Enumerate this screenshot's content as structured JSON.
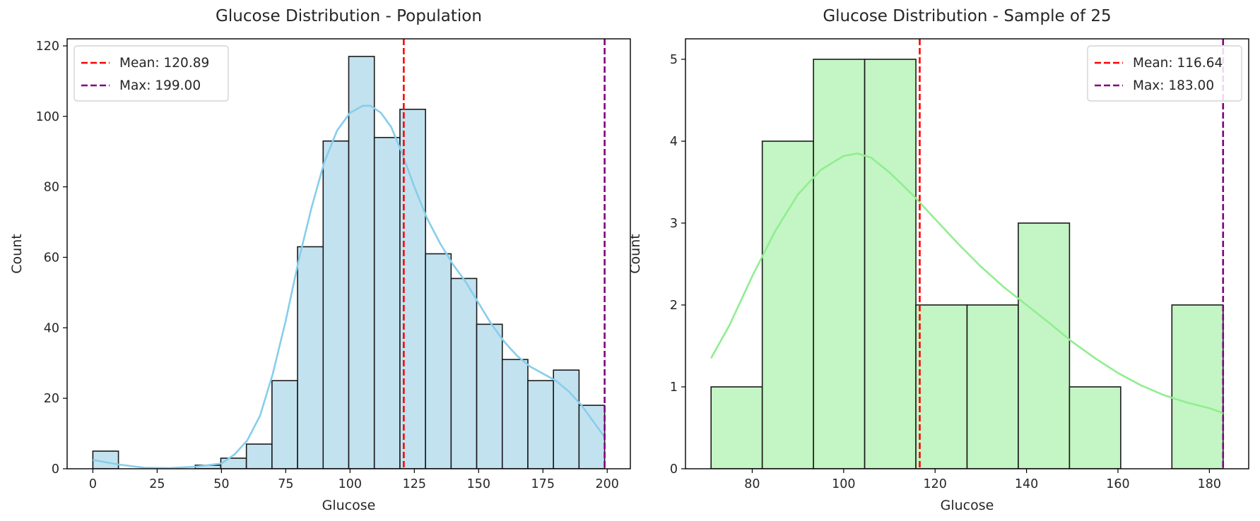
{
  "chart_data": [
    {
      "type": "bar",
      "title": "Glucose Distribution - Population",
      "xlabel": "Glucose",
      "ylabel": "Count",
      "xlim": [
        -10,
        209
      ],
      "ylim": [
        0,
        122
      ],
      "xticks": [
        0,
        25,
        50,
        75,
        100,
        125,
        150,
        175,
        200
      ],
      "yticks": [
        0,
        20,
        40,
        60,
        80,
        100,
        120
      ],
      "bar_color": "#c3e2f0",
      "kde_color": "#87ceeb",
      "bins": [
        {
          "x0": 0,
          "x1": 9.95,
          "count": 5
        },
        {
          "x0": 9.95,
          "x1": 19.9,
          "count": 0
        },
        {
          "x0": 19.9,
          "x1": 29.85,
          "count": 0
        },
        {
          "x0": 29.85,
          "x1": 39.8,
          "count": 0
        },
        {
          "x0": 39.8,
          "x1": 49.75,
          "count": 1
        },
        {
          "x0": 49.75,
          "x1": 59.7,
          "count": 3
        },
        {
          "x0": 59.7,
          "x1": 69.65,
          "count": 7
        },
        {
          "x0": 69.65,
          "x1": 79.6,
          "count": 25
        },
        {
          "x0": 79.6,
          "x1": 89.55,
          "count": 63
        },
        {
          "x0": 89.55,
          "x1": 99.5,
          "count": 93
        },
        {
          "x0": 99.5,
          "x1": 109.45,
          "count": 117
        },
        {
          "x0": 109.45,
          "x1": 119.4,
          "count": 94
        },
        {
          "x0": 119.4,
          "x1": 129.35,
          "count": 102
        },
        {
          "x0": 129.35,
          "x1": 139.3,
          "count": 61
        },
        {
          "x0": 139.3,
          "x1": 149.25,
          "count": 54
        },
        {
          "x0": 149.25,
          "x1": 159.2,
          "count": 41
        },
        {
          "x0": 159.2,
          "x1": 169.15,
          "count": 31
        },
        {
          "x0": 169.15,
          "x1": 179.1,
          "count": 25
        },
        {
          "x0": 179.1,
          "x1": 189.05,
          "count": 28
        },
        {
          "x0": 189.05,
          "x1": 199.0,
          "count": 18
        }
      ],
      "kde": {
        "x": [
          0,
          10,
          20,
          30,
          40,
          50,
          55,
          60,
          65,
          70,
          75,
          80,
          85,
          90,
          95,
          100,
          105,
          108,
          112,
          116,
          120,
          125,
          130,
          135,
          140,
          145,
          150,
          155,
          160,
          165,
          170,
          175,
          180,
          185,
          190,
          195,
          199
        ],
        "y": [
          2.5,
          1.2,
          0.3,
          0.2,
          0.6,
          1.5,
          4,
          8,
          15,
          27,
          42,
          59,
          74,
          87,
          96,
          101,
          103,
          103,
          101,
          97,
          90,
          80,
          71,
          64,
          58,
          53,
          47,
          41,
          36,
          32,
          29,
          27,
          25,
          22,
          18,
          13,
          9
        ]
      },
      "vlines": [
        {
          "label": "Mean: 120.89",
          "x": 120.89,
          "color": "#ff0000"
        },
        {
          "label": "Max: 199.00",
          "x": 199.0,
          "color": "#800080"
        }
      ],
      "legend_loc": "upper left"
    },
    {
      "type": "bar",
      "title": "Glucose Distribution - Sample of 25",
      "xlabel": "Glucose",
      "ylabel": "Count",
      "xlim": [
        65.4,
        188.6
      ],
      "ylim": [
        0,
        5.25
      ],
      "xticks": [
        80,
        100,
        120,
        140,
        160,
        180
      ],
      "yticks": [
        0,
        1,
        2,
        3,
        4,
        5
      ],
      "bar_color": "#c4f5c4",
      "kde_color": "#90ee90",
      "bins": [
        {
          "x0": 71.0,
          "x1": 82.2,
          "count": 1
        },
        {
          "x0": 82.2,
          "x1": 93.4,
          "count": 4
        },
        {
          "x0": 93.4,
          "x1": 104.6,
          "count": 5
        },
        {
          "x0": 104.6,
          "x1": 115.8,
          "count": 5
        },
        {
          "x0": 115.8,
          "x1": 127.0,
          "count": 2
        },
        {
          "x0": 127.0,
          "x1": 138.2,
          "count": 2
        },
        {
          "x0": 138.2,
          "x1": 149.4,
          "count": 3
        },
        {
          "x0": 149.4,
          "x1": 160.6,
          "count": 1
        },
        {
          "x0": 160.6,
          "x1": 171.8,
          "count": 0
        },
        {
          "x0": 171.8,
          "x1": 183.0,
          "count": 2
        }
      ],
      "kde": {
        "x": [
          71,
          75,
          80,
          85,
          90,
          95,
          100,
          103,
          106,
          110,
          115,
          120,
          125,
          130,
          135,
          140,
          145,
          150,
          155,
          160,
          165,
          170,
          175,
          180,
          183
        ],
        "y": [
          1.35,
          1.75,
          2.35,
          2.9,
          3.35,
          3.65,
          3.82,
          3.85,
          3.8,
          3.62,
          3.35,
          3.05,
          2.75,
          2.47,
          2.22,
          2.0,
          1.78,
          1.55,
          1.35,
          1.17,
          1.02,
          0.9,
          0.81,
          0.74,
          0.68
        ]
      },
      "vlines": [
        {
          "label": "Mean: 116.64",
          "x": 116.64,
          "color": "#ff0000"
        },
        {
          "label": "Max: 183.00",
          "x": 183.0,
          "color": "#800080"
        }
      ],
      "legend_loc": "upper right"
    }
  ]
}
